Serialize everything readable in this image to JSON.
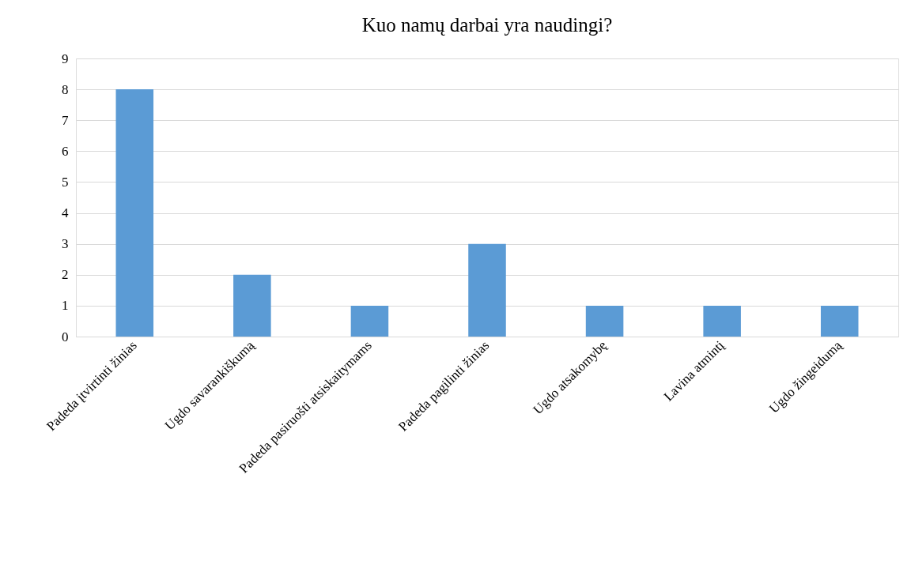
{
  "chart_data": {
    "type": "bar",
    "title": "Kuo namų darbai yra naudingi?",
    "categories": [
      "Padeda įtvirtinti žinias",
      "Ugdo savarankiškumą",
      "Padeda pasiruošti atsiskaitymams",
      "Padeda pagilinti žinias",
      "Ugdo atsakomybę",
      "Lavina atmintį",
      "Ugdo žingeidumą"
    ],
    "values": [
      8,
      2,
      1,
      3,
      1,
      1,
      1
    ],
    "color": "#5b9bd5",
    "ylim": [
      0,
      9
    ],
    "yticks": [
      0,
      1,
      2,
      3,
      4,
      5,
      6,
      7,
      8,
      9
    ],
    "grid": "y"
  }
}
